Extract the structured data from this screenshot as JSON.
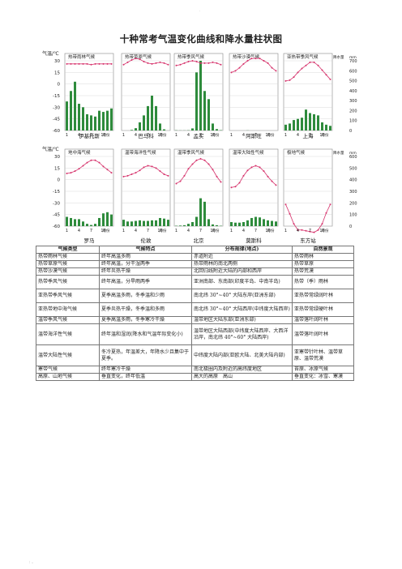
{
  "title": "十种常考气温变化曲线和降水量柱状图",
  "colors": {
    "bar": "#2e8b3c",
    "line": "#d6336c",
    "grid": "#cfcfcf",
    "frame": "#888888"
  },
  "axis_labels": {
    "temp": "气温/℃",
    "precip": "降水量",
    "precip_unit": "mm",
    "month_unit": "月份",
    "temp_ticks": [
      "30",
      "15",
      "0",
      "-15",
      "-30",
      "-45",
      "-60"
    ],
    "precip_ticks_top": [
      "700",
      "600",
      "500",
      "400",
      "300",
      "200",
      "100",
      "0"
    ],
    "precip_ticks_bottom": [
      "600",
      "500",
      "400",
      "300",
      "200",
      "100",
      "0"
    ],
    "month_ticks": [
      "1",
      "4",
      "7",
      "10"
    ]
  },
  "chart_data": [
    {
      "type": "bar+line",
      "title": "热带雨林气候",
      "station": "伊基托斯",
      "precip": [
        250,
        340,
        420,
        230,
        200,
        140,
        130,
        120,
        170,
        160,
        170,
        190
      ],
      "temp": [
        26,
        26,
        26,
        26,
        26,
        26,
        25,
        26,
        26,
        26,
        26,
        26
      ]
    },
    {
      "type": "bar+line",
      "title": "热带草原气候",
      "station": "巴马科",
      "precip": [
        0,
        0,
        5,
        20,
        70,
        130,
        210,
        300,
        210,
        60,
        10,
        0
      ],
      "temp": [
        25,
        28,
        31,
        33,
        32,
        29,
        27,
        26,
        27,
        28,
        27,
        25
      ]
    },
    {
      "type": "bar+line",
      "title": "热带季风气候",
      "station": "孟买",
      "precip": [
        2,
        1,
        1,
        2,
        18,
        500,
        620,
        340,
        270,
        60,
        12,
        3
      ],
      "temp": [
        24,
        25,
        27,
        29,
        30,
        29,
        27,
        27,
        27,
        28,
        27,
        25
      ]
    },
    {
      "type": "bar+line",
      "title": "热带沙漠气候",
      "station": "阿斯旺",
      "precip": [
        0,
        0,
        0,
        0,
        1,
        0,
        0,
        0,
        0,
        0,
        0,
        0
      ],
      "temp": [
        15,
        17,
        21,
        26,
        30,
        33,
        33,
        33,
        30,
        27,
        21,
        17
      ]
    },
    {
      "type": "bar+line",
      "title": "亚热带季风气候",
      "station": "上海",
      "precip": [
        50,
        60,
        90,
        100,
        110,
        180,
        150,
        140,
        130,
        70,
        50,
        40
      ],
      "temp": [
        4,
        5,
        9,
        15,
        20,
        24,
        28,
        28,
        24,
        18,
        12,
        6
      ]
    },
    {
      "type": "bar+line",
      "title": "地中海气候",
      "station": "罗马",
      "precip": [
        80,
        70,
        60,
        60,
        40,
        20,
        10,
        20,
        70,
        110,
        120,
        100
      ],
      "temp": [
        8,
        9,
        11,
        14,
        18,
        22,
        25,
        25,
        22,
        17,
        13,
        9
      ]
    },
    {
      "type": "bar+line",
      "title": "温带海洋性气候",
      "station": "伦敦",
      "precip": [
        55,
        40,
        40,
        45,
        50,
        45,
        45,
        50,
        50,
        70,
        65,
        55
      ],
      "temp": [
        4,
        5,
        7,
        9,
        12,
        16,
        18,
        17,
        15,
        11,
        7,
        5
      ]
    },
    {
      "type": "bar+line",
      "title": "温带季风气候",
      "station": "北京",
      "precip": [
        3,
        5,
        8,
        20,
        35,
        80,
        240,
        210,
        60,
        15,
        8,
        3
      ],
      "temp": [
        -5,
        -2,
        5,
        14,
        20,
        25,
        27,
        25,
        20,
        13,
        4,
        -3
      ]
    },
    {
      "type": "bar+line",
      "title": "温带大陆性气候",
      "station": "莫斯科",
      "precip": [
        35,
        30,
        30,
        35,
        50,
        70,
        80,
        75,
        60,
        50,
        45,
        40
      ],
      "temp": [
        -10,
        -9,
        -4,
        5,
        12,
        16,
        18,
        16,
        11,
        4,
        -2,
        -7
      ]
    },
    {
      "type": "bar+line",
      "title": "极地气候",
      "station": "东方站",
      "precip": [
        0,
        0,
        0,
        0,
        0,
        0,
        0,
        0,
        0,
        0,
        0,
        0
      ],
      "temp": [
        -32,
        -44,
        -57,
        -65,
        -65,
        -66,
        -67,
        -68,
        -65,
        -57,
        -43,
        -32
      ]
    }
  ],
  "table": {
    "headers": [
      "气候类型",
      "气候特点",
      "分布规律(地点)",
      "自然景观"
    ],
    "rows": [
      [
        "热带雨林气候",
        "终年高温多雨",
        "赤道附近",
        "热带雨林"
      ],
      [
        "热带草原气候",
        "终年高温，分干湿两季",
        "热带雨林的南北两侧",
        "热带草原"
      ],
      [
        "热带沙漠气候",
        "终年炎热干燥",
        "北回归线附近大陆的内部和西岸",
        "热带荒漠"
      ],
      [
        "热带季风气候",
        "终年高温，分旱雨两季",
        "亚洲南部、东南部(印度半岛、中南半岛)",
        "热带（季）雨林"
      ],
      [
        "亚热带季风气候",
        "夏季高温多雨，冬季温和少雨",
        "南北纬 30°~40° 大陆东岸(亚洲东部)",
        "亚热带常绿阔叶林"
      ],
      [
        "亚热带地中海气候",
        "夏季炎热干燥，冬季温和多雨",
        "南北纬 30°~40° 大陆西岸(中纬度大陆西岸)",
        "亚热带常绿硬叶林"
      ],
      [
        "温带季风气候",
        "夏季高温多雨，冬季寒冷干燥",
        "温带地区大陆东部(亚洲东部)",
        "温带落叶阔叶林"
      ],
      [
        "温带海洋性气候",
        "终年温和湿润(降水和气温年际变化小)",
        "温带地区大陆西部(中纬度大陆西岸、大西洋沿岸，南北纬 40°~60° 大陆西岸)",
        "温带落叶阔叶林"
      ],
      [
        "温带大陆性气候",
        "冬冷夏热，年温差大，年降水少且集中于夏季。",
        "中纬度大陆内部(亚欧大陆、北美大陆内部)",
        "亚寒带针叶林、温带草原、温带荒漠"
      ],
      [
        "寒带气候",
        "终年寒冷干燥",
        "南北极圈内及附近的高纬度地区",
        "苔原、冰原气候"
      ],
      [
        "高原、山地气候",
        "垂直变化，终年低温",
        "高大的高原　高山",
        "垂直变化：冰雪、寒漠"
      ]
    ]
  }
}
